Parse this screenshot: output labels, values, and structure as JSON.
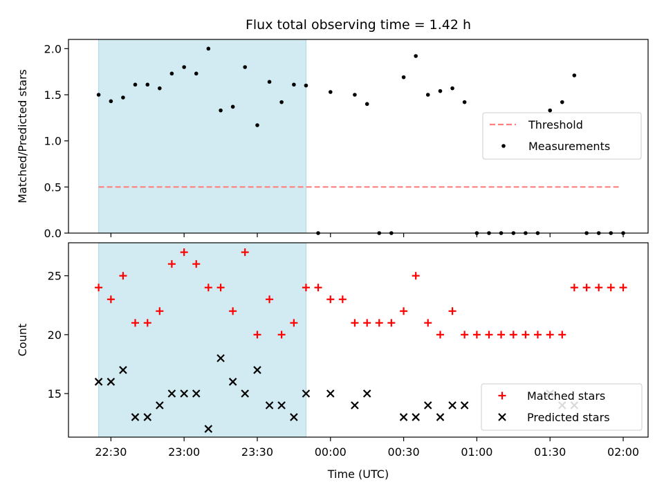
{
  "chart_data": {
    "title": "Flux total observing time = 1.42 h",
    "xlabel": "Time (UTC)",
    "x_tick_labels": [
      "22:30",
      "23:00",
      "23:30",
      "00:00",
      "00:30",
      "01:00",
      "01:30",
      "02:00"
    ],
    "x_tick_hours": [
      22.5,
      23.0,
      23.5,
      24.0,
      24.5,
      25.0,
      25.5,
      26.0
    ],
    "xlim_hours": [
      22.21,
      26.17
    ],
    "observing_window_hours": [
      22.416,
      23.833
    ],
    "colors": {
      "window": "#add8e6",
      "threshold": "#ff7f7f",
      "measurements": "#000000",
      "matched": "#ff0000",
      "predicted": "#000000"
    },
    "panels": [
      {
        "type": "scatter",
        "ylabel": "Matched/Predicted stars",
        "ylim": [
          0.0,
          2.1
        ],
        "y_ticks": [
          "0.0",
          "0.5",
          "1.0",
          "1.5",
          "2.0"
        ],
        "legend_position": "center-right",
        "threshold": {
          "name": "Threshold",
          "value": 0.5,
          "x_range": [
            22.416,
            25.983
          ]
        },
        "series": [
          {
            "name": "Measurements",
            "marker": "dot",
            "x": [
              22.416,
              22.5,
              22.583,
              22.666,
              22.75,
              22.833,
              22.916,
              23.0,
              23.083,
              23.166,
              23.25,
              23.333,
              23.416,
              23.5,
              23.583,
              23.666,
              23.75,
              23.833,
              23.916,
              24.0,
              24.166,
              24.25,
              24.333,
              24.416,
              24.5,
              24.583,
              24.666,
              24.75,
              24.833,
              24.916,
              25.0,
              25.083,
              25.166,
              25.25,
              25.333,
              25.416,
              25.5,
              25.583,
              25.666,
              25.75,
              25.833,
              25.916,
              26.0
            ],
            "y": [
              1.5,
              1.43,
              1.47,
              1.61,
              1.61,
              1.57,
              1.73,
              1.8,
              1.73,
              2.0,
              1.33,
              1.37,
              1.8,
              1.17,
              1.64,
              1.42,
              1.61,
              1.6,
              0.0,
              1.53,
              1.5,
              1.4,
              0.0,
              0.0,
              1.69,
              1.92,
              1.5,
              1.54,
              1.57,
              1.42,
              0.0,
              0.0,
              0.0,
              0.0,
              0.0,
              0.0,
              1.33,
              1.42,
              1.71,
              0.0,
              0.0,
              0.0,
              0.0
            ]
          }
        ]
      },
      {
        "type": "scatter",
        "ylabel": "Count",
        "ylim": [
          11.3,
          27.8
        ],
        "y_ticks": [
          "15",
          "20",
          "25"
        ],
        "legend_position": "bottom-right",
        "series": [
          {
            "name": "Matched stars",
            "marker": "plus",
            "x": [
              22.416,
              22.5,
              22.583,
              22.666,
              22.75,
              22.833,
              22.916,
              23.0,
              23.083,
              23.166,
              23.25,
              23.333,
              23.416,
              23.5,
              23.583,
              23.666,
              23.75,
              23.833,
              23.916,
              24.0,
              24.083,
              24.166,
              24.25,
              24.333,
              24.416,
              24.5,
              24.583,
              24.666,
              24.75,
              24.833,
              24.916,
              25.0,
              25.083,
              25.166,
              25.25,
              25.333,
              25.416,
              25.5,
              25.583,
              25.666,
              25.75,
              25.833,
              25.916,
              26.0
            ],
            "y": [
              24,
              23,
              25,
              21,
              21,
              22,
              26,
              27,
              26,
              24,
              24,
              22,
              27,
              20,
              23,
              20,
              21,
              24,
              24,
              23,
              23,
              21,
              21,
              21,
              21,
              22,
              25,
              21,
              20,
              22,
              20,
              20,
              20,
              20,
              20,
              20,
              20,
              20,
              20,
              24,
              24,
              24,
              24,
              24
            ]
          },
          {
            "name": "Predicted stars",
            "marker": "x",
            "x": [
              22.416,
              22.5,
              22.583,
              22.666,
              22.75,
              22.833,
              22.916,
              23.0,
              23.083,
              23.166,
              23.25,
              23.333,
              23.416,
              23.5,
              23.583,
              23.666,
              23.75,
              23.833,
              24.0,
              24.166,
              24.25,
              24.5,
              24.583,
              24.666,
              24.75,
              24.833,
              24.916,
              25.5,
              25.583,
              25.666
            ],
            "y": [
              16,
              16,
              17,
              13,
              13,
              14,
              15,
              15,
              15,
              12,
              18,
              16,
              15,
              17,
              14,
              14,
              13,
              15,
              15,
              14,
              15,
              13,
              13,
              14,
              13,
              14,
              14,
              15,
              14,
              14
            ]
          }
        ]
      }
    ]
  }
}
